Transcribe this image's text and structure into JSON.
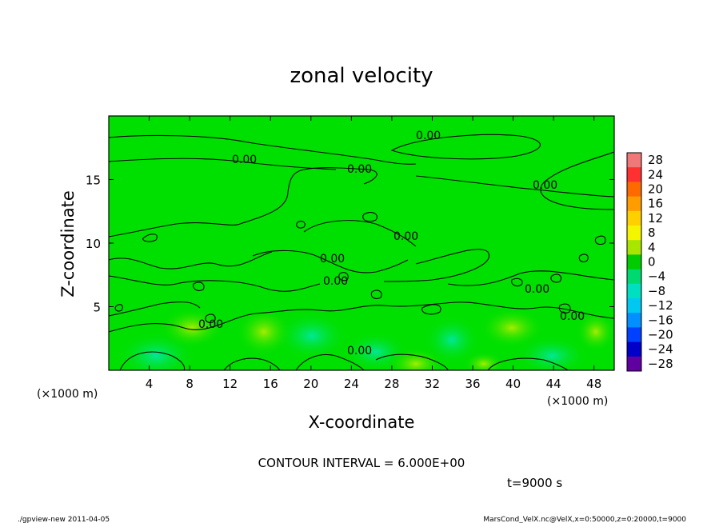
{
  "chart_data": {
    "type": "heatmap",
    "title": "zonal velocity",
    "xlabel": "X-coordinate",
    "ylabel": "Z-coordinate",
    "x_unit": "(×1000 m)",
    "x_unit_right": "(×1000 m)",
    "xlim": [
      0,
      50
    ],
    "ylim": [
      0,
      20
    ],
    "x_ticks": [
      4,
      8,
      12,
      16,
      20,
      24,
      28,
      32,
      36,
      40,
      44,
      48
    ],
    "y_ticks": [
      5,
      10,
      15
    ],
    "colorbar": {
      "levels": [
        28,
        24,
        20,
        16,
        12,
        8,
        4,
        0,
        -4,
        -8,
        -12,
        -16,
        -20,
        -24,
        -28
      ],
      "labels": [
        "28",
        "24",
        "20",
        "16",
        "12",
        "8",
        "4",
        "0",
        "−4",
        "−8",
        "−12",
        "−16",
        "−20",
        "−24",
        "−28"
      ],
      "colors": [
        "#f07878",
        "#ff3030",
        "#ff6a00",
        "#ff9c00",
        "#ffd000",
        "#f5f500",
        "#a8e600",
        "#00cc00",
        "#00d870",
        "#00e0c0",
        "#00c8f0",
        "#0090ff",
        "#0040ff",
        "#0000c8",
        "#6000a0"
      ]
    },
    "contour_label": "0.00",
    "contour_interval": "CONTOUR INTERVAL = 6.000E+00",
    "time": "t=9000 s",
    "background_color": "#00e000",
    "data_summary": "mostly ~0 m/s with weak positive (yellow-green, ~2-4) and negative (cyan-green, ~-2 to -4) cells near the surface below z=4"
  },
  "footer": {
    "left": "./gpview-new   2011-04-05",
    "right": "MarsCond_VelX.nc@VelX,x=0:50000,z=0:20000,t=9000"
  }
}
